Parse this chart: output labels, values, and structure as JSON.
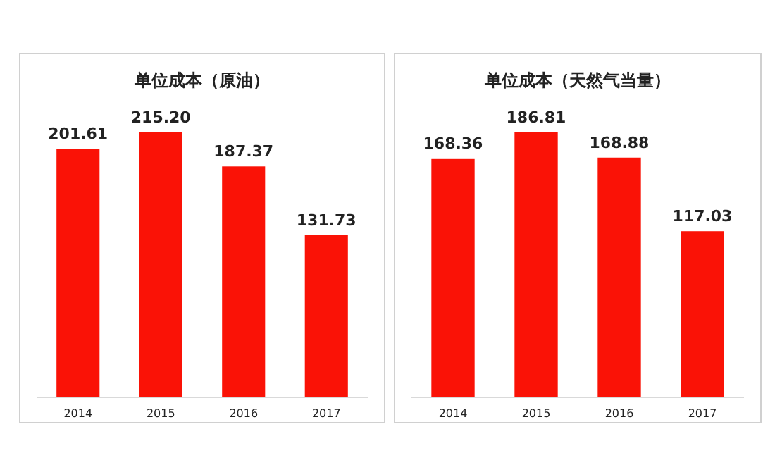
{
  "chart_data": [
    {
      "type": "bar",
      "title": "单位成本（原油）",
      "categories": [
        "2014",
        "2015",
        "2016",
        "2017"
      ],
      "values": [
        201.61,
        215.2,
        187.37,
        131.73
      ],
      "value_labels": [
        "201.61",
        "215.20",
        "187.37",
        "131.73"
      ],
      "color": "#fa1206"
    },
    {
      "type": "bar",
      "title": "单位成本（天然气当量）",
      "categories": [
        "2014",
        "2015",
        "2016",
        "2017"
      ],
      "values": [
        168.36,
        186.81,
        168.88,
        117.03
      ],
      "value_labels": [
        "168.36",
        "186.81",
        "168.88",
        "117.03"
      ],
      "color": "#fa1206"
    }
  ]
}
